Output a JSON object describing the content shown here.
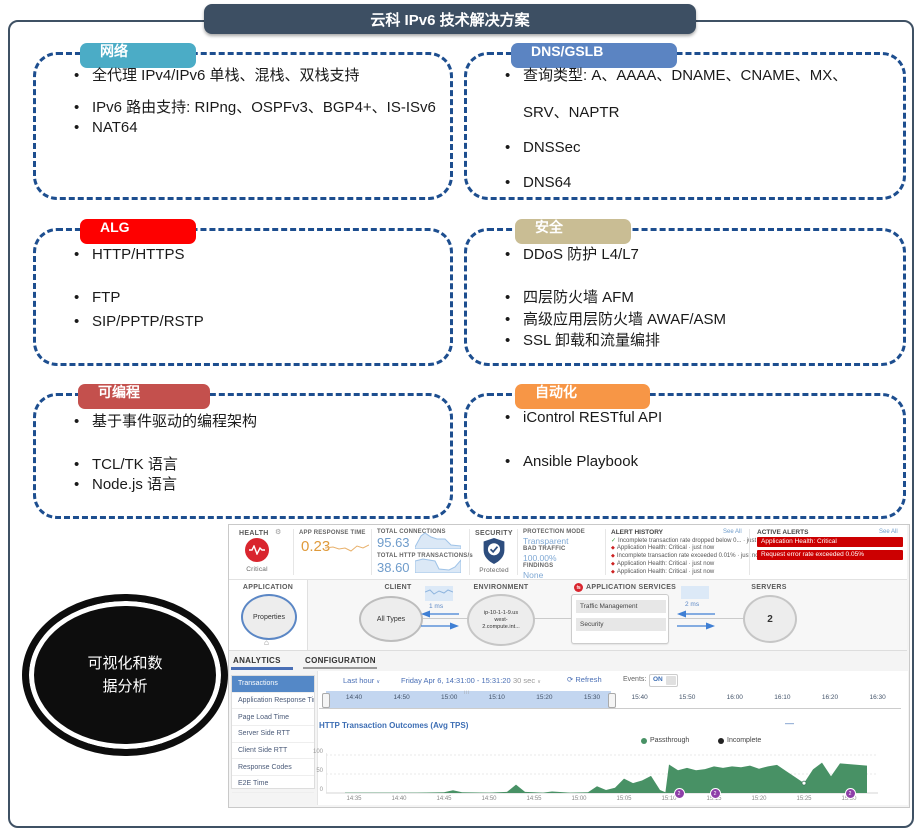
{
  "title": "云科 IPv6 技术解决方案",
  "icons": {
    "gear": "⚙",
    "chevron_down": "∨",
    "refresh": "⟳",
    "house": "⌂",
    "check": "✓",
    "diamond": "◆",
    "grip": "|||",
    "collapse_minus": "—",
    "f5": "f5"
  },
  "boxes": [
    {
      "label": "网络",
      "color": "#4bacc6",
      "bullets": [
        "全代理 IPv4/IPv6 单栈、混栈、双栈支持",
        "IPv6 路由支持: RIPng、OSPFv3、BGP4+、IS-ISv6",
        "NAT64"
      ]
    },
    {
      "label": "DNS/GSLB",
      "color": "#5b84c2",
      "bullets": [
        "查询类型: A、AAAA、DNAME、CNAME、MX、\nSRV、NAPTR",
        "DNSSec",
        "DNS64"
      ]
    },
    {
      "label": "ALG",
      "color": "#fe0000",
      "bullets": [
        "HTTP/HTTPS",
        "FTP",
        "SIP/PPTP/RSTP"
      ]
    },
    {
      "label": "安全",
      "color": "#c9bd94",
      "bullets": [
        "DDoS 防护 L4/L7",
        "四层防火墙 AFM",
        "高级应用层防火墙 AWAF/ASM",
        "SSL 卸载和流量编排"
      ]
    },
    {
      "label": "可编程",
      "color": "#c4504d",
      "bullets": [
        "基于事件驱动的编程架构",
        "TCL/TK 语言",
        "Node.js 语言"
      ]
    },
    {
      "label": "自动化",
      "color": "#f79646",
      "bullets": [
        "iControl RESTful API",
        "Ansible Playbook"
      ]
    }
  ],
  "ellipse": {
    "line1": "可视化和数",
    "line2": "据分析"
  },
  "dashboard": {
    "health": {
      "label": "HEALTH",
      "status": "Critical"
    },
    "metrics": [
      {
        "label": "APP RESPONSE TIME",
        "value": "0.23",
        "color": "#df9a3b"
      },
      {
        "label": "TOTAL CONNECTIONS",
        "value": "95.63",
        "color": "#6f9ccb"
      },
      {
        "label": "TOTAL HTTP TRANSACTIONS/s",
        "value": "38.60",
        "color": "#6f9ccb"
      }
    ],
    "security": {
      "label": "SECURITY",
      "status": "Protected"
    },
    "protection": {
      "mode_label": "PROTECTION MODE",
      "mode": "Transparent",
      "bad_label": "BAD TRAFFIC",
      "bad": "100.00%",
      "findings_label": "FINDINGS",
      "findings": "None"
    },
    "alert_history": {
      "title": "ALERT HISTORY",
      "see_all": "See All",
      "items": [
        {
          "icon": "check",
          "text": "Incomplete transaction rate dropped below 0... · just now"
        },
        {
          "icon": "diamond",
          "text": "Application Health: Critical · just now"
        },
        {
          "icon": "diamond",
          "text": "Incomplete transaction rate exceeded 0.01% · just now"
        },
        {
          "icon": "diamond",
          "text": "Application Health: Critical · just now"
        },
        {
          "icon": "diamond",
          "text": "Application Health: Critical · just now"
        }
      ]
    },
    "active_alerts": {
      "title": "ACTIVE ALERTS",
      "see_all": "See All",
      "items": [
        "Application Health: Critical",
        "Request error rate exceeded 0.05%"
      ]
    },
    "map": {
      "application_label": "APPLICATION",
      "application_node": "Properties",
      "client_label": "CLIENT",
      "client_node": "All Types",
      "latency_client": "1 ms",
      "environment_label": "ENVIRONMENT",
      "environment_lines": [
        "ip-10-1-1-9.us",
        "west-",
        "2.compute.int..."
      ],
      "services_label": "APPLICATION SERVICES",
      "services": [
        "Traffic Management",
        "Security"
      ],
      "latency_server": "2 ms",
      "servers_label": "SERVERS",
      "servers_count": "2"
    },
    "tabs": [
      "ANALYTICS",
      "CONFIGURATION"
    ],
    "sidebar": {
      "selected_index": 0,
      "items": [
        "Transactions",
        "Application Response Time",
        "Page Load Time",
        "Server Side RTT",
        "Client Side RTT",
        "Response Codes",
        "E2E Time"
      ]
    },
    "toolbar": {
      "range": "Last hour",
      "date": "Friday Apr 6, 14:31:00 - 15:31:20",
      "interval": "30 sec",
      "refresh": "Refresh",
      "events_label": "Events:",
      "events_state": "ON"
    },
    "timeline_ticks": [
      "14:40",
      "14:50",
      "15:00",
      "15:10",
      "15:20",
      "15:30",
      "15:40",
      "15:50",
      "16:00",
      "16:10",
      "16:20",
      "16:30"
    ]
  },
  "chart_data": {
    "type": "area",
    "title": "HTTP Transaction Outcomes (Avg TPS)",
    "legend": [
      "Passthrough",
      "Incomplete"
    ],
    "colors": [
      "#489165",
      "#222222"
    ],
    "ylim": [
      0,
      100
    ],
    "yticks": [
      100,
      50,
      0
    ],
    "xticks": [
      "14:35",
      "14:40",
      "14:45",
      "14:50",
      "14:55",
      "15:00",
      "15:05",
      "15:10",
      "15:15",
      "15:20",
      "15:25",
      "15:30"
    ],
    "x0": "14:34",
    "x_unit": "minutes after x0",
    "series": [
      {
        "name": "Passthrough",
        "points": [
          [
            0,
            1
          ],
          [
            4,
            1
          ],
          [
            8,
            1
          ],
          [
            11,
            2
          ],
          [
            12,
            7
          ],
          [
            13,
            2
          ],
          [
            16,
            1
          ],
          [
            18,
            3
          ],
          [
            19,
            22
          ],
          [
            20,
            3
          ],
          [
            22,
            1
          ],
          [
            23,
            4
          ],
          [
            25,
            1
          ],
          [
            27,
            2
          ],
          [
            28,
            18
          ],
          [
            29,
            8
          ],
          [
            30,
            14
          ],
          [
            31,
            38
          ],
          [
            32,
            26
          ],
          [
            33,
            33
          ],
          [
            34,
            45
          ],
          [
            35,
            8
          ],
          [
            35.6,
            2
          ],
          [
            36,
            75
          ],
          [
            37,
            60
          ],
          [
            38,
            66
          ],
          [
            39,
            60
          ],
          [
            40,
            63
          ],
          [
            41,
            70
          ],
          [
            42,
            66
          ],
          [
            43,
            70
          ],
          [
            44,
            68
          ],
          [
            45,
            72
          ],
          [
            46,
            64
          ],
          [
            47,
            70
          ],
          [
            48,
            74
          ],
          [
            49,
            58
          ],
          [
            50,
            42
          ],
          [
            51,
            26
          ],
          [
            52,
            62
          ],
          [
            53,
            80
          ],
          [
            54,
            44
          ],
          [
            55,
            78
          ],
          [
            56,
            76
          ],
          [
            58,
            72
          ]
        ]
      },
      {
        "name": "Incomplete",
        "points": [
          [
            0,
            0
          ],
          [
            58,
            0
          ]
        ]
      }
    ],
    "event_markers": [
      {
        "time": "15:11",
        "m": 37,
        "label": "2"
      },
      {
        "time": "15:15",
        "m": 41,
        "label": "2"
      },
      {
        "time": "15:30",
        "m": 56,
        "label": "2"
      }
    ],
    "point_marker": {
      "m": 51,
      "v": 26
    }
  }
}
